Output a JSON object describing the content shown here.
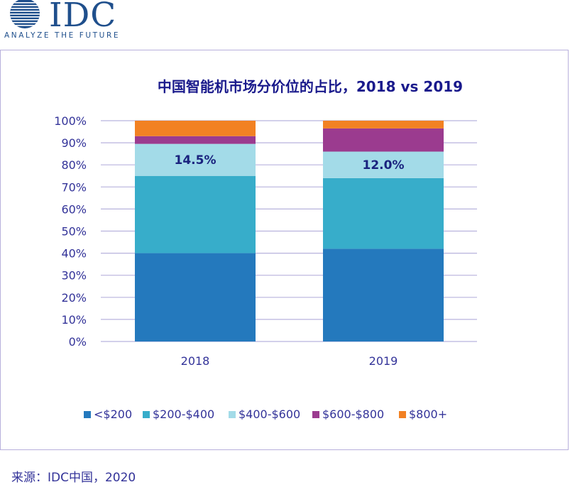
{
  "logo": {
    "wordmark": "IDC",
    "tagline": "ANALYZE THE FUTURE",
    "color": "#1f4f8c"
  },
  "source": "来源：IDC中国，2020",
  "chart_data": {
    "type": "bar",
    "stacked": true,
    "title": "中国智能机市场分价位的占比，2018 vs 2019",
    "categories": [
      "2018",
      "2019"
    ],
    "ylim": [
      0,
      100
    ],
    "yticks": [
      "0%",
      "10%",
      "20%",
      "30%",
      "40%",
      "50%",
      "60%",
      "70%",
      "80%",
      "90%",
      "100%"
    ],
    "grid": true,
    "legend_position": "bottom",
    "series": [
      {
        "name": "<$200",
        "color": "#2479bd",
        "values": [
          40.0,
          42.0
        ]
      },
      {
        "name": "$200-$400",
        "color": "#37adca",
        "values": [
          35.0,
          32.0
        ]
      },
      {
        "name": "$400-$600",
        "color": "#a3dbe8",
        "values": [
          14.5,
          12.0
        ]
      },
      {
        "name": "$600-$800",
        "color": "#9b3b8f",
        "values": [
          3.5,
          10.5
        ]
      },
      {
        "name": "$800+",
        "color": "#f28123",
        "values": [
          7.0,
          3.5
        ]
      }
    ],
    "annotations": [
      {
        "series": "$400-$600",
        "category": "2018",
        "text": "14.5%"
      },
      {
        "series": "$400-$600",
        "category": "2019",
        "text": "12.0%"
      }
    ]
  }
}
